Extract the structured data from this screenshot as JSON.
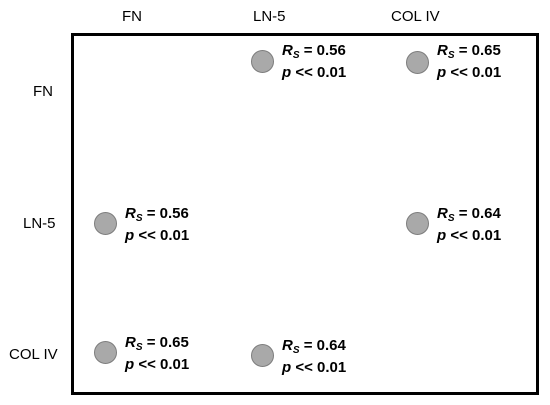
{
  "columns": [
    "FN",
    "LN-5",
    "COL IV"
  ],
  "rows": [
    "FN",
    "LN-5",
    "COL IV"
  ],
  "cells": [
    {
      "row": "FN",
      "col": "LN-5",
      "rs_symbol": "R",
      "rs_sub": "S",
      "rs_value": "= 0.56",
      "p_symbol": "p",
      "p_value": "<< 0.01"
    },
    {
      "row": "FN",
      "col": "COL IV",
      "rs_symbol": "R",
      "rs_sub": "S",
      "rs_value": "= 0.65",
      "p_symbol": "p",
      "p_value": "<< 0.01"
    },
    {
      "row": "LN-5",
      "col": "FN",
      "rs_symbol": "R",
      "rs_sub": "S",
      "rs_value": "= 0.56",
      "p_symbol": "p",
      "p_value": "<< 0.01"
    },
    {
      "row": "LN-5",
      "col": "COL IV",
      "rs_symbol": "R",
      "rs_sub": "S",
      "rs_value": "= 0.64",
      "p_symbol": "p",
      "p_value": "<< 0.01"
    },
    {
      "row": "COL IV",
      "col": "FN",
      "rs_symbol": "R",
      "rs_sub": "S",
      "rs_value": "= 0.65",
      "p_symbol": "p",
      "p_value": "<< 0.01"
    },
    {
      "row": "COL IV",
      "col": "LN-5",
      "rs_symbol": "R",
      "rs_sub": "S",
      "rs_value": "= 0.64",
      "p_symbol": "p",
      "p_value": "<< 0.01"
    }
  ],
  "colors": {
    "dot_fill": "#a9a9a9",
    "dot_stroke": "#7d7d7d",
    "border": "#000000"
  }
}
